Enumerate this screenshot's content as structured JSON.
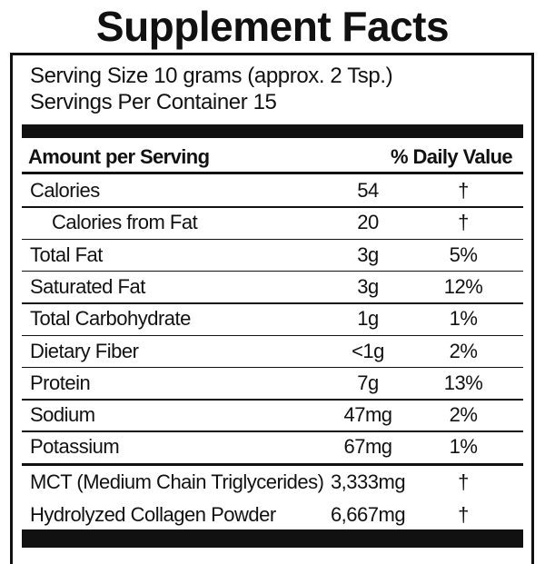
{
  "header": {
    "title": "Supplement Facts",
    "serving_size": "Serving Size 10 grams (approx. 2 Tsp.)",
    "servings_per_container": "Servings Per Container 15"
  },
  "table": {
    "columns": [
      "Amount per Serving",
      "% Daily Value"
    ],
    "rows": [
      [
        "Calories",
        "54",
        "†"
      ],
      [
        "Calories from Fat",
        "20",
        "†"
      ],
      [
        "Total Fat",
        "3g",
        "5%"
      ],
      [
        "Saturated Fat",
        "3g",
        "12%"
      ],
      [
        "Total Carbohydrate",
        "1g",
        "1%"
      ],
      [
        "Dietary Fiber",
        "<1g",
        "2%"
      ],
      [
        "Protein",
        "7g",
        "13%"
      ],
      [
        "Sodium",
        "47mg",
        "2%"
      ],
      [
        "Potassium",
        "67mg",
        "1%"
      ]
    ],
    "extra_rows": [
      [
        "MCT (Medium Chain Triglycerides)",
        "3,333mg",
        "†"
      ],
      [
        "Hydrolyzed Collagen Powder",
        "6,667mg",
        "†"
      ]
    ]
  }
}
